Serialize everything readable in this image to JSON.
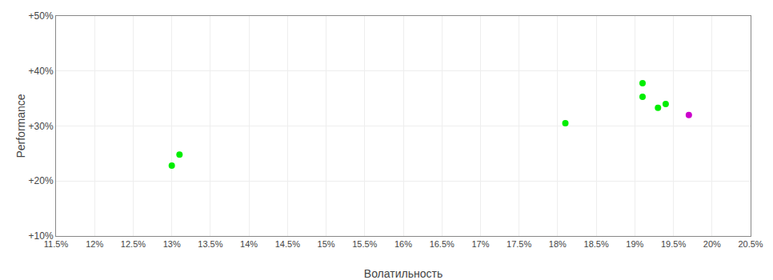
{
  "chart_data": {
    "type": "scatter",
    "xlabel": "Волатильность",
    "ylabel": "Performance",
    "series": [
      {
        "color": "#00ee00",
        "x": [
          0.131,
          0.13,
          0.181,
          0.191,
          0.191,
          0.194,
          0.193
        ],
        "values": [
          0.248,
          0.228,
          0.305,
          0.378,
          0.353,
          0.34,
          0.333
        ]
      },
      {
        "color": "#cc00cc",
        "x": [
          0.197
        ],
        "values": [
          0.32
        ]
      }
    ],
    "xlim": [
      0.115,
      0.205
    ],
    "ylim": [
      0.1,
      0.5
    ],
    "xticks": [
      {
        "value": 0.115,
        "label": "11.5%"
      },
      {
        "value": 0.12,
        "label": "12%"
      },
      {
        "value": 0.125,
        "label": "12.5%"
      },
      {
        "value": 0.13,
        "label": "13%"
      },
      {
        "value": 0.135,
        "label": "13.5%"
      },
      {
        "value": 0.14,
        "label": "14%"
      },
      {
        "value": 0.145,
        "label": "14.5%"
      },
      {
        "value": 0.15,
        "label": "15%"
      },
      {
        "value": 0.155,
        "label": "15.5%"
      },
      {
        "value": 0.16,
        "label": "16%"
      },
      {
        "value": 0.165,
        "label": "16.5%"
      },
      {
        "value": 0.17,
        "label": "17%"
      },
      {
        "value": 0.175,
        "label": "17.5%"
      },
      {
        "value": 0.18,
        "label": "18%"
      },
      {
        "value": 0.185,
        "label": "18.5%"
      },
      {
        "value": 0.19,
        "label": "19%"
      },
      {
        "value": 0.195,
        "label": "19.5%"
      },
      {
        "value": 0.2,
        "label": "20%"
      },
      {
        "value": 0.205,
        "label": "20.5%"
      }
    ],
    "yticks": [
      {
        "value": 0.1,
        "label": "+10%"
      },
      {
        "value": 0.2,
        "label": "+20%"
      },
      {
        "value": 0.3,
        "label": "+30%"
      },
      {
        "value": 0.4,
        "label": "+40%"
      },
      {
        "value": 0.5,
        "label": "+50%"
      }
    ],
    "grid": true
  }
}
